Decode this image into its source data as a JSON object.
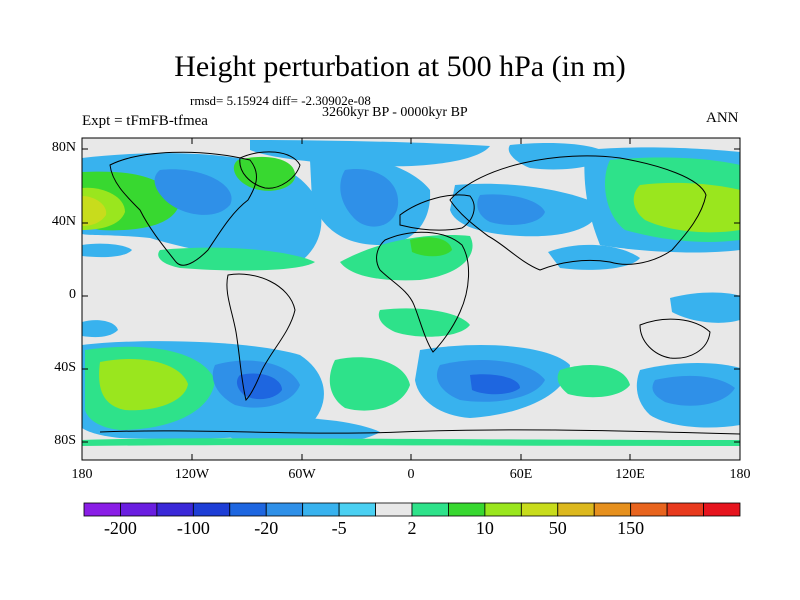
{
  "title": "Height perturbation at 500 hPa (in m)",
  "subtitle_stats": "rmsd= 5.15924 diff= -2.30902e-08",
  "subtitle_period": "3260kyr BP - 0000kyr BP",
  "left_label": "Expt = tFmFB-tfmea",
  "right_label": "ANN",
  "lat_labels": [
    "80N",
    "40N",
    "0",
    "40S",
    "80S"
  ],
  "lon_labels": [
    "180",
    "120W",
    "60W",
    "0",
    "60E",
    "120E",
    "180"
  ],
  "colorbar": {
    "colors": [
      "#8a1ee6",
      "#6a1ee0",
      "#3a28d8",
      "#1e3ed6",
      "#1e66e0",
      "#2f90e8",
      "#38b2ee",
      "#4ad0f2",
      "#e8e8e8",
      "#2ee28a",
      "#38d830",
      "#9ae61e",
      "#c8dc1c",
      "#dcb81e",
      "#e6901e",
      "#e8641e",
      "#e83a1e",
      "#e6141e"
    ],
    "labels": [
      "-200",
      "-100",
      "-20",
      "-5",
      "2",
      "10",
      "50",
      "150"
    ]
  }
}
